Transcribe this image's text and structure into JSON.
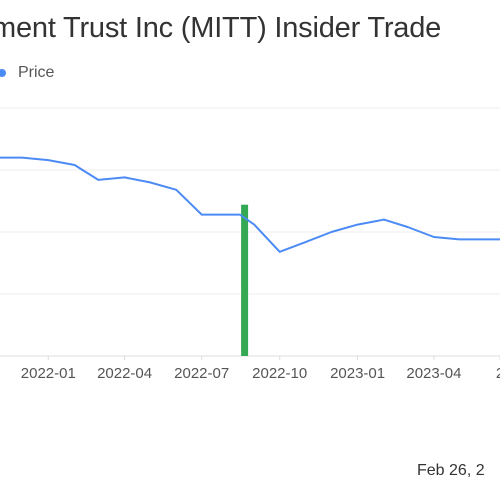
{
  "chart_data": {
    "type": "line",
    "title": "ment Trust Inc (MITT) Insider Trade",
    "legend": {
      "placement": "top-left",
      "entries": [
        "Price"
      ]
    },
    "x_ticks": [
      "2022-01",
      "2022-04",
      "2022-07",
      "2022-10",
      "2023-01",
      "2023-04",
      "2"
    ],
    "xlim": [
      "2021-11-05",
      "2023-06-18"
    ],
    "ylim": [
      0,
      1
    ],
    "y_ticks_shown": false,
    "grid": "horizontal",
    "series": [
      {
        "name": "Price",
        "color": "#4c8bf5",
        "x": [
          "2021-11-05",
          "2021-12-01",
          "2022-01-01",
          "2022-02-01",
          "2022-03-01",
          "2022-04-01",
          "2022-05-01",
          "2022-06-01",
          "2022-07-01",
          "2022-08-01",
          "2022-08-15",
          "2022-09-01",
          "2022-10-01",
          "2022-11-01",
          "2022-12-01",
          "2023-01-01",
          "2023-02-01",
          "2023-03-01",
          "2023-04-01",
          "2023-05-01",
          "2023-06-18"
        ],
        "values": [
          0.8,
          0.8,
          0.79,
          0.77,
          0.71,
          0.72,
          0.7,
          0.67,
          0.57,
          0.57,
          0.57,
          0.53,
          0.42,
          0.46,
          0.5,
          0.53,
          0.55,
          0.52,
          0.48,
          0.47,
          0.47
        ]
      }
    ],
    "markers": [
      {
        "type": "insider-trade-bar",
        "x": "2022-08-20",
        "color": "#34a853",
        "y_top": 0.61
      }
    ],
    "footer_date": "Feb 26, 2"
  }
}
